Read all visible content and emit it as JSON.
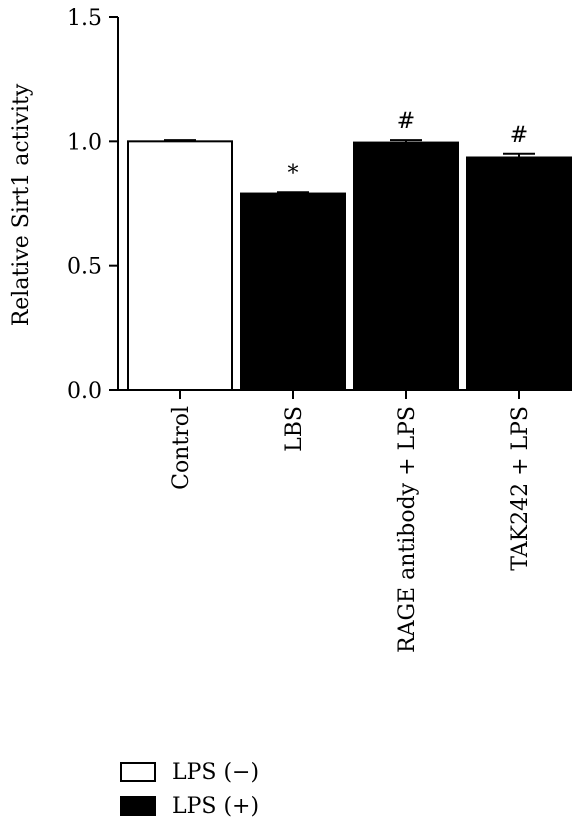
{
  "chart_data": {
    "type": "bar",
    "title": "",
    "ylabel": "Relative Sirt1 activity",
    "xlabel": "",
    "ylim": [
      0,
      1.5
    ],
    "yticks": [
      "0.0",
      "0.5",
      "1.0",
      "1.5"
    ],
    "ytick_values": [
      0,
      0.5,
      1.0,
      1.5
    ],
    "categories": [
      "Control",
      "LBS",
      "RAGE antibody + LPS",
      "TAK242 + LPS"
    ],
    "values": [
      1.0,
      0.79,
      0.995,
      0.935
    ],
    "errors": [
      0.005,
      0.005,
      0.01,
      0.015
    ],
    "groups": [
      "LPS (−)",
      "LPS (+)",
      "LPS (+)",
      "LPS (+)"
    ],
    "annotations": [
      "",
      "*",
      "#",
      "#"
    ],
    "colors": {
      "LPS (−)": "#ffffff",
      "LPS (+)": "#000000"
    },
    "legend": [
      {
        "label": "LPS (−)",
        "color": "#ffffff"
      },
      {
        "label": "LPS (+)",
        "color": "#000000"
      }
    ],
    "grid": false,
    "legend_position": "bottom-left"
  }
}
